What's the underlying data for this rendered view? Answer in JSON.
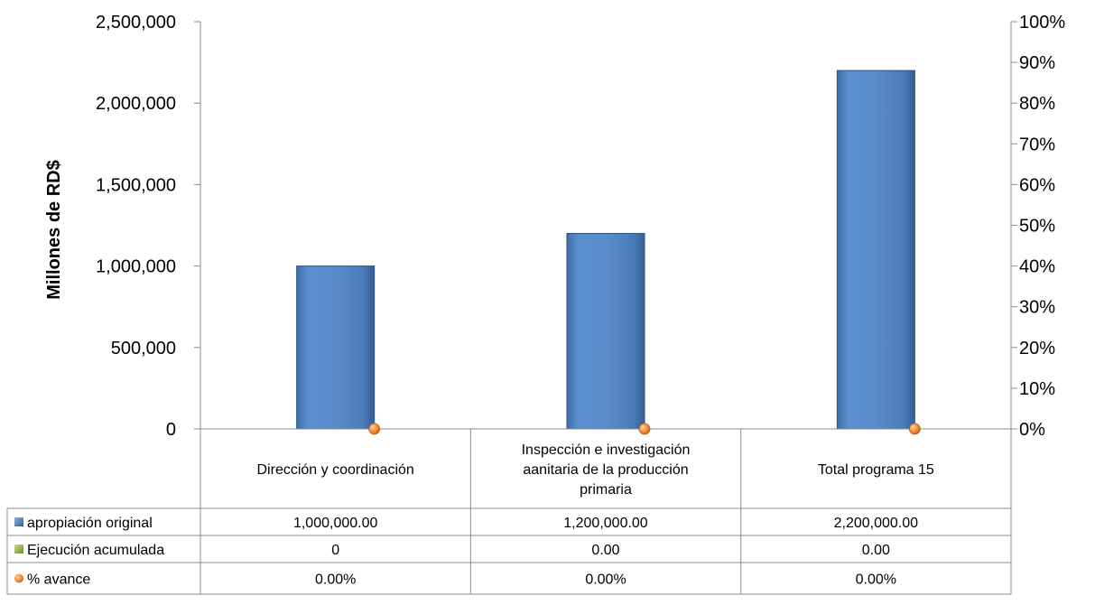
{
  "chart_data": {
    "type": "bar",
    "categories": [
      [
        "Dirección y coordinación"
      ],
      [
        "Inspección e investigación",
        "aanitaria de la producción",
        "primaria"
      ],
      [
        "Total programa 15"
      ]
    ],
    "series": [
      {
        "name": "apropiación original",
        "values": [
          1000000,
          1200000,
          2200000
        ],
        "axis": "left",
        "kind": "bar",
        "color": "#4f81bd"
      },
      {
        "name": "Ejecución acumulada",
        "values": [
          0,
          0,
          0
        ],
        "axis": "left",
        "kind": "bar",
        "color": "#9bbb59"
      },
      {
        "name": "% avance",
        "values": [
          0,
          0,
          0
        ],
        "axis": "right",
        "kind": "marker",
        "color": "#f79646"
      }
    ],
    "ylabel": "Millones de RD$",
    "ylim": [
      0,
      2500000
    ],
    "y_ticks": [
      "0",
      "500,000",
      "1,000,000",
      "1,500,000",
      "2,000,000",
      "2,500,000"
    ],
    "y2lim": [
      0,
      1
    ],
    "y2_ticks": [
      "0%",
      "10%",
      "20%",
      "30%",
      "40%",
      "50%",
      "60%",
      "70%",
      "80%",
      "90%",
      "100%"
    ],
    "data_table": {
      "rows": [
        {
          "label": "apropiación original",
          "cells": [
            "1,000,000.00",
            "1,200,000.00",
            "2,200,000.00"
          ]
        },
        {
          "label": "Ejecución acumulada",
          "cells": [
            "0",
            "0.00",
            "0.00"
          ]
        },
        {
          "label": "% avance",
          "cells": [
            "0.00%",
            "0.00%",
            "0.00%"
          ]
        }
      ]
    }
  }
}
